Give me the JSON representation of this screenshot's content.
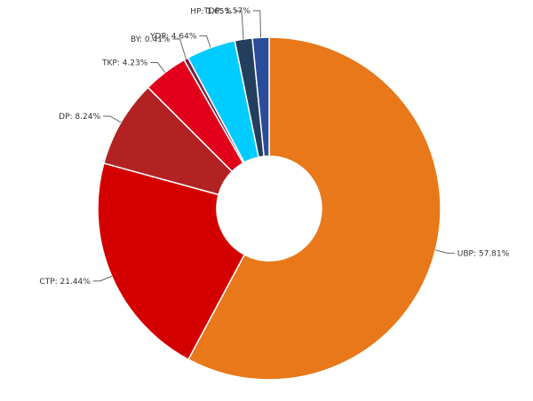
{
  "chart_data": {
    "type": "pie",
    "variant": "donut",
    "title": "",
    "legend": "none",
    "slices": [
      {
        "label": "UBP",
        "value": 57.81,
        "text": "UBP: 57.81%",
        "color": "#E8781A"
      },
      {
        "label": "CTP",
        "value": 21.44,
        "text": "CTP: 21.44%",
        "color": "#D40000"
      },
      {
        "label": "DP",
        "value": 8.24,
        "text": "DP: 8.24%",
        "color": "#B22222"
      },
      {
        "label": "TKP",
        "value": 4.23,
        "text": "TKP: 4.23%",
        "color": "#E3001B"
      },
      {
        "label": "BY",
        "value": 0.41,
        "text": "BY: 0.41%",
        "color": "#7A1F3D"
      },
      {
        "label": "YDP",
        "value": 4.64,
        "text": "YDP: 4.64%",
        "color": "#00CCFF"
      },
      {
        "label": "HP",
        "value": 1.65,
        "text": "HP: 1.65%",
        "color": "#243F5E"
      },
      {
        "label": "TDP",
        "value": 1.57,
        "text": "TDP: 1.57%",
        "color": "#2B4C9B"
      }
    ]
  }
}
